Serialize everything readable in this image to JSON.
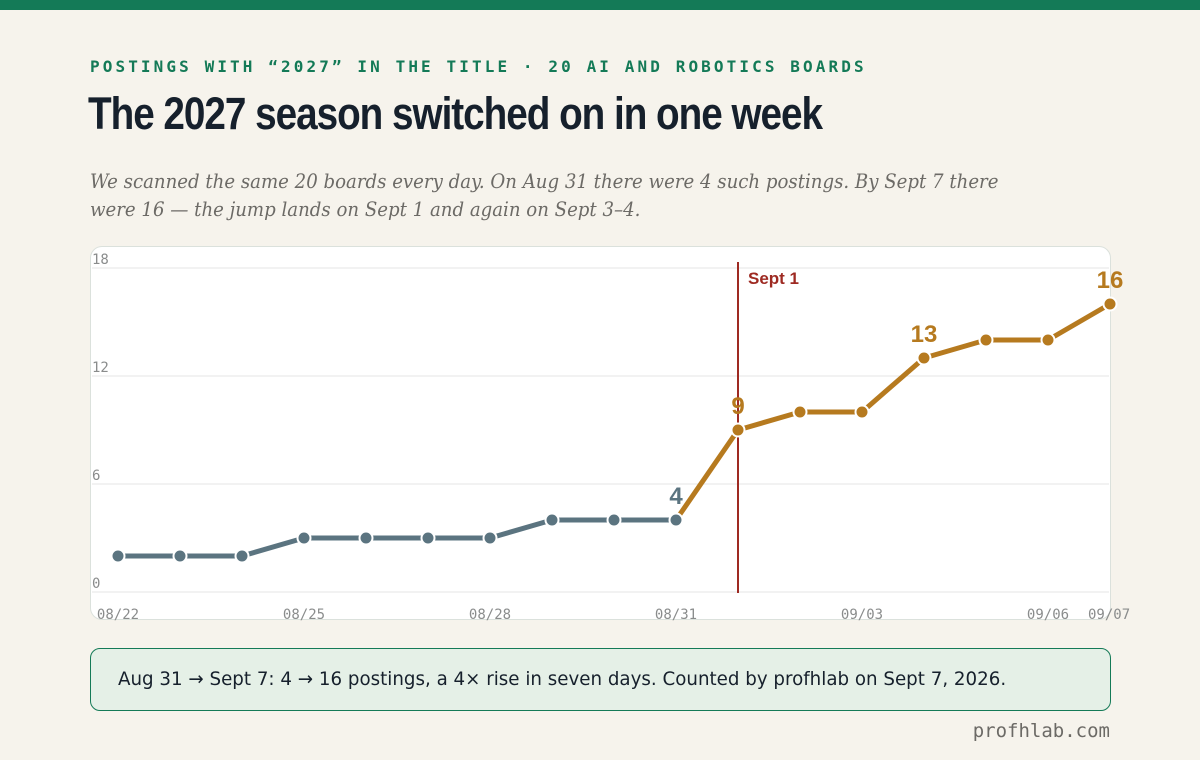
{
  "header": {
    "kicker": "POSTINGS WITH “2027” IN THE TITLE · 20 AI AND ROBOTICS BOARDS",
    "title": "The 2027 season switched on in one week",
    "subtitle": "We scanned the same 20 boards every day. On Aug 31 there were 4 such postings. By Sept 7 there were 16 — the jump lands on Sept 1 and again on Sept 3–4."
  },
  "colors": {
    "accent": "#147a57",
    "before_series": "#5b7480",
    "after_series": "#b67a1f",
    "marker_line": "#9e2a22"
  },
  "chart_data": {
    "type": "line",
    "x": [
      "2026-08-22",
      "2026-08-23",
      "2026-08-24",
      "2026-08-25",
      "2026-08-26",
      "2026-08-27",
      "2026-08-28",
      "2026-08-29",
      "2026-08-30",
      "2026-08-31",
      "2026-09-01",
      "2026-09-02",
      "2026-09-03",
      "2026-09-04",
      "2026-09-05",
      "2026-09-06",
      "2026-09-07"
    ],
    "values": [
      2,
      2,
      2,
      3,
      3,
      3,
      3,
      4,
      4,
      4,
      9,
      10,
      10,
      13,
      14,
      14,
      16
    ],
    "ylim": [
      0,
      18
    ],
    "yticks": [
      "0",
      "6",
      "12",
      "18"
    ],
    "xtick_labels": [
      {
        "date": "2026-08-22",
        "label": "08/22"
      },
      {
        "date": "2026-08-25",
        "label": "08/25"
      },
      {
        "date": "2026-08-28",
        "label": "08/28"
      },
      {
        "date": "2026-08-31",
        "label": "08/31"
      },
      {
        "date": "2026-09-03",
        "label": "09/03"
      },
      {
        "date": "2026-09-06",
        "label": "09/06"
      },
      {
        "date": "2026-09-07",
        "label": "09/07"
      }
    ],
    "marker": {
      "date": "2026-09-01",
      "label": "Sept 1"
    },
    "data_labels": [
      {
        "date": "2026-08-31",
        "value": 4,
        "text": "4"
      },
      {
        "date": "2026-09-01",
        "value": 9,
        "text": "9"
      },
      {
        "date": "2026-09-04",
        "value": 13,
        "text": "13"
      },
      {
        "date": "2026-09-07",
        "value": 16,
        "text": "16"
      }
    ],
    "grid": true
  },
  "note": {
    "text": "Aug 31 → Sept 7: 4 → 16 postings, a 4× rise in seven days. Counted by profhlab on Sept 7, 2026."
  },
  "footer": {
    "site": "profhlab.com"
  }
}
